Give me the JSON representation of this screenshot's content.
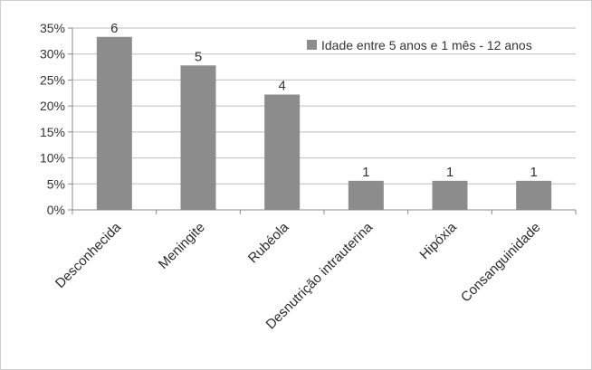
{
  "chart_data": {
    "type": "bar",
    "categories": [
      "Desconhecida",
      "Meningite",
      "Rubéola",
      "Desnutrição intrauterina",
      "Hipóxia",
      "Consanguinidade"
    ],
    "series": [
      {
        "name": "Idade entre 5 anos e 1 mês - 12 anos",
        "values": [
          33.3,
          27.8,
          22.2,
          5.6,
          5.6,
          5.6
        ],
        "data_labels": [
          "6",
          "5",
          "4",
          "1",
          "1",
          "1"
        ],
        "color": "#8c8c8c"
      }
    ],
    "yticks": [
      "0%",
      "5%",
      "10%",
      "15%",
      "20%",
      "25%",
      "30%",
      "35%"
    ],
    "ylim": [
      0,
      35
    ],
    "grid": true,
    "legend_position": "top-right"
  }
}
